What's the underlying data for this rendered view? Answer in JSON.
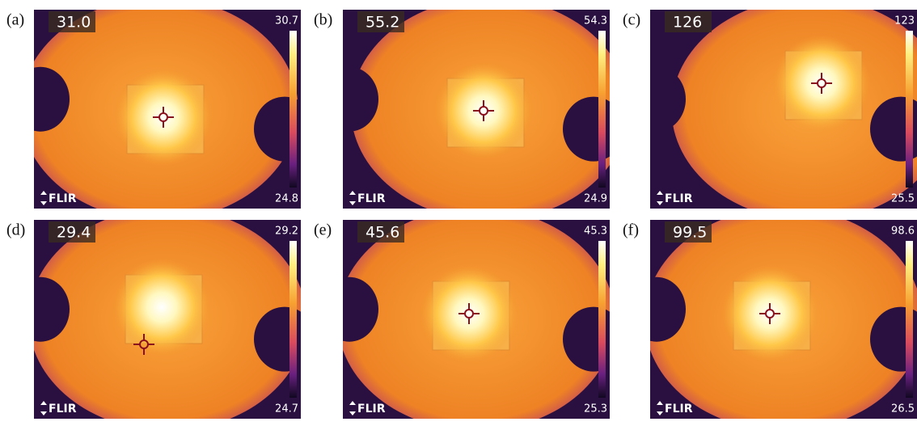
{
  "panels": [
    {
      "label": "(a)",
      "spot": "31.0",
      "max": "30.7",
      "min": "24.8",
      "logo": "FLIR"
    },
    {
      "label": "(b)",
      "spot": "55.2",
      "max": "54.3",
      "min": "24.9",
      "logo": "FLIR"
    },
    {
      "label": "(c)",
      "spot": "126",
      "max": "123",
      "min": "25.5",
      "logo": "FLIR"
    },
    {
      "label": "(d)",
      "spot": "29.4",
      "max": "29.2",
      "min": "24.7",
      "logo": "FLIR"
    },
    {
      "label": "(e)",
      "spot": "45.6",
      "max": "45.3",
      "min": "25.3",
      "logo": "FLIR"
    },
    {
      "label": "(f)",
      "spot": "99.5",
      "max": "98.6",
      "min": "26.5",
      "logo": "FLIR"
    }
  ]
}
